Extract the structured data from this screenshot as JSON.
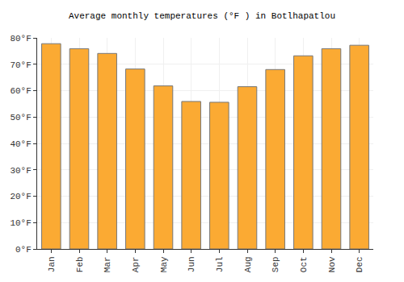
{
  "chart_data": {
    "type": "bar",
    "title": "Average monthly temperatures (°F ) in Botlhapatlou",
    "categories": [
      "Jan",
      "Feb",
      "Mar",
      "Apr",
      "May",
      "Jun",
      "Jul",
      "Aug",
      "Sep",
      "Oct",
      "Nov",
      "Dec"
    ],
    "values": [
      77.8,
      75.9,
      74.1,
      68.2,
      61.8,
      55.9,
      55.6,
      61.5,
      68.0,
      73.2,
      75.9,
      77.2
    ],
    "color": "#fbaa33",
    "ylim": [
      0,
      80
    ],
    "yticks": [
      {
        "value": 0,
        "label": "0°F"
      },
      {
        "value": 10,
        "label": "10°F"
      },
      {
        "value": 20,
        "label": "20°F"
      },
      {
        "value": 30,
        "label": "30°F"
      },
      {
        "value": 40,
        "label": "40°F"
      },
      {
        "value": 50,
        "label": "50°F"
      },
      {
        "value": 60,
        "label": "60°F"
      },
      {
        "value": 70,
        "label": "70°F"
      },
      {
        "value": 80,
        "label": "80°F"
      }
    ],
    "grid": true
  }
}
